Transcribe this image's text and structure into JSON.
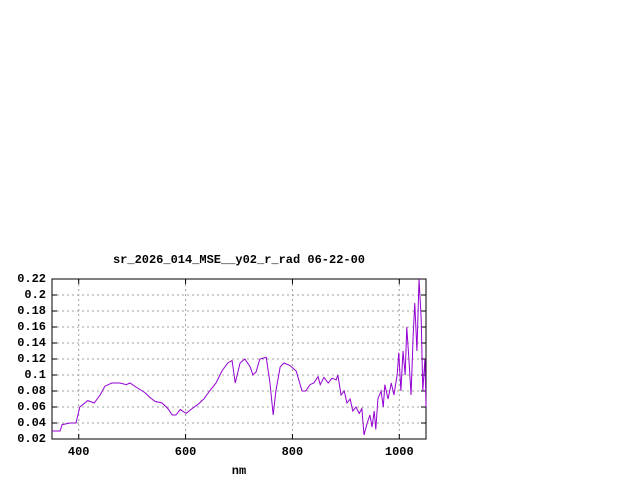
{
  "chart_data": {
    "type": "line",
    "title": "sr_2026_014_MSE__y02_r_rad 06-22-00",
    "x_label": "nm",
    "xlim": [
      350,
      1050
    ],
    "ylim": [
      0.02,
      0.22
    ],
    "xticks": [
      400,
      600,
      800,
      1000
    ],
    "yticks": [
      0.02,
      0.04,
      0.06,
      0.08,
      0.1,
      0.12,
      0.14,
      0.16,
      0.18,
      0.2,
      0.22
    ],
    "grid": true,
    "series": [
      {
        "color": "#9400d3",
        "x": [
          350,
          365,
          369,
          384,
          395,
          402,
          417,
          429,
          440,
          449,
          462,
          477,
          489,
          496,
          507,
          524,
          533,
          543,
          556,
          567,
          575,
          582,
          590,
          601,
          612,
          623,
          634,
          645,
          657,
          668,
          679,
          687,
          693,
          702,
          711,
          721,
          726,
          732,
          739,
          751,
          758,
          764,
          769,
          777,
          784,
          795,
          807,
          818,
          825,
          833,
          840,
          848,
          852,
          859,
          867,
          874,
          882,
          885,
          891,
          897,
          902,
          908,
          913,
          919,
          925,
          930,
          934,
          940,
          945,
          949,
          953,
          956,
          960,
          966,
          970,
          973,
          979,
          985,
          990,
          996,
          999,
          1003,
          1007,
          1011,
          1014,
          1018,
          1022,
          1026,
          1029,
          1033,
          1037,
          1041,
          1044,
          1048,
          1050
        ],
        "values": [
          0.03,
          0.03,
          0.038,
          0.04,
          0.04,
          0.06,
          0.068,
          0.065,
          0.075,
          0.086,
          0.09,
          0.09,
          0.088,
          0.09,
          0.085,
          0.078,
          0.072,
          0.067,
          0.065,
          0.058,
          0.05,
          0.05,
          0.057,
          0.052,
          0.058,
          0.063,
          0.07,
          0.08,
          0.09,
          0.105,
          0.115,
          0.118,
          0.09,
          0.115,
          0.12,
          0.11,
          0.1,
          0.104,
          0.12,
          0.122,
          0.09,
          0.05,
          0.08,
          0.11,
          0.115,
          0.112,
          0.105,
          0.08,
          0.08,
          0.088,
          0.09,
          0.098,
          0.088,
          0.097,
          0.09,
          0.096,
          0.094,
          0.1,
          0.075,
          0.08,
          0.065,
          0.07,
          0.055,
          0.06,
          0.052,
          0.058,
          0.025,
          0.04,
          0.05,
          0.035,
          0.055,
          0.032,
          0.07,
          0.08,
          0.06,
          0.088,
          0.07,
          0.09,
          0.075,
          0.1,
          0.128,
          0.08,
          0.13,
          0.1,
          0.16,
          0.12,
          0.075,
          0.15,
          0.19,
          0.13,
          0.22,
          0.17,
          0.08,
          0.12,
          0.06
        ]
      }
    ]
  }
}
